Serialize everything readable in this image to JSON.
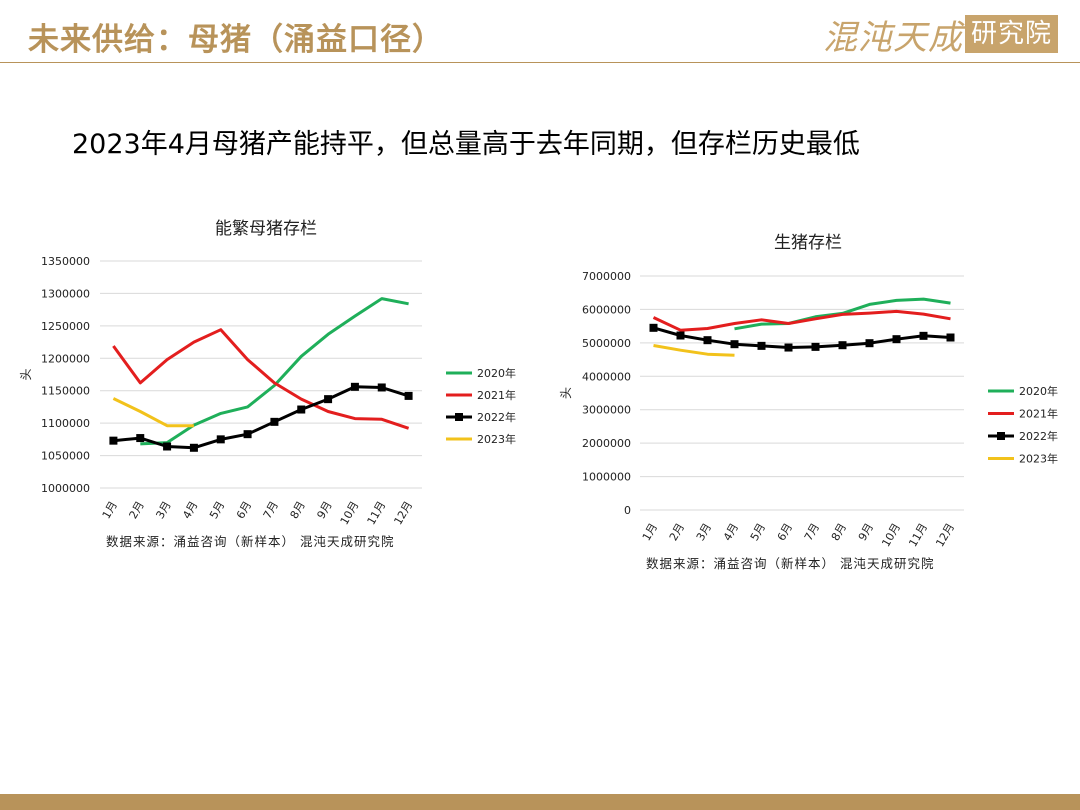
{
  "header": {
    "title": "未来供给：母猪（涌益口径）",
    "brand_main": "混沌天成",
    "brand_box": "研究院"
  },
  "headline": "2023年4月母猪产能持平，但总量高于去年同期，但存栏历史最低",
  "colors": {
    "2020年": "#1FAF5A",
    "2021年": "#E31E1E",
    "2022年": "#000000",
    "2023年": "#F2C21B",
    "gold": "#B8935A"
  },
  "chart_data": [
    {
      "type": "line",
      "title": "能繁母猪存栏",
      "ylabel": "头",
      "ylim": [
        1000000,
        1350000
      ],
      "yticks": [
        "1000000",
        "1050000",
        "1100000",
        "1150000",
        "1200000",
        "1250000",
        "1300000",
        "1350000"
      ],
      "categories": [
        "1月",
        "2月",
        "3月",
        "4月",
        "5月",
        "6月",
        "7月",
        "8月",
        "9月",
        "10月",
        "11月",
        "12月"
      ],
      "series": [
        {
          "name": "2020年",
          "values": [
            null,
            1068000,
            1070000,
            1097000,
            1115000,
            1125000,
            1158000,
            1203000,
            1237000,
            1265000,
            1292000,
            1284000
          ]
        },
        {
          "name": "2021年",
          "values": [
            1219000,
            1162000,
            1198000,
            1225000,
            1244000,
            1198000,
            1162000,
            1137000,
            1118000,
            1107000,
            1106000,
            1092000
          ]
        },
        {
          "name": "2022年",
          "values": [
            1073000,
            1077000,
            1064000,
            1062000,
            1075000,
            1083000,
            1102000,
            1121000,
            1137000,
            1156000,
            1155000,
            1142000
          ]
        },
        {
          "name": "2023年",
          "values": [
            1138000,
            1118000,
            1096000,
            1096000,
            null,
            null,
            null,
            null,
            null,
            null,
            null,
            null
          ]
        }
      ],
      "source": "数据来源：涌益咨询（新样本） 混沌天成研究院"
    },
    {
      "type": "line",
      "title": "生猪存栏",
      "ylabel": "头",
      "ylim": [
        0,
        7000000
      ],
      "yticks": [
        "0",
        "1000000",
        "2000000",
        "3000000",
        "4000000",
        "5000000",
        "6000000",
        "7000000"
      ],
      "categories": [
        "1月",
        "2月",
        "3月",
        "4月",
        "5月",
        "6月",
        "7月",
        "8月",
        "9月",
        "10月",
        "11月",
        "12月"
      ],
      "series": [
        {
          "name": "2020年",
          "values": [
            null,
            null,
            null,
            5420000,
            5560000,
            5580000,
            5780000,
            5880000,
            6150000,
            6270000,
            6310000,
            6190000
          ]
        },
        {
          "name": "2021年",
          "values": [
            5760000,
            5380000,
            5430000,
            5580000,
            5690000,
            5580000,
            5720000,
            5850000,
            5890000,
            5940000,
            5860000,
            5720000
          ]
        },
        {
          "name": "2022年",
          "values": [
            5450000,
            5220000,
            5080000,
            4960000,
            4910000,
            4860000,
            4880000,
            4930000,
            4990000,
            5110000,
            5210000,
            5160000
          ]
        },
        {
          "name": "2023年",
          "values": [
            4920000,
            4780000,
            4660000,
            4630000,
            null,
            null,
            null,
            null,
            null,
            null,
            null,
            null
          ]
        }
      ],
      "source": "数据来源：涌益咨询（新样本） 混沌天成研究院"
    }
  ]
}
